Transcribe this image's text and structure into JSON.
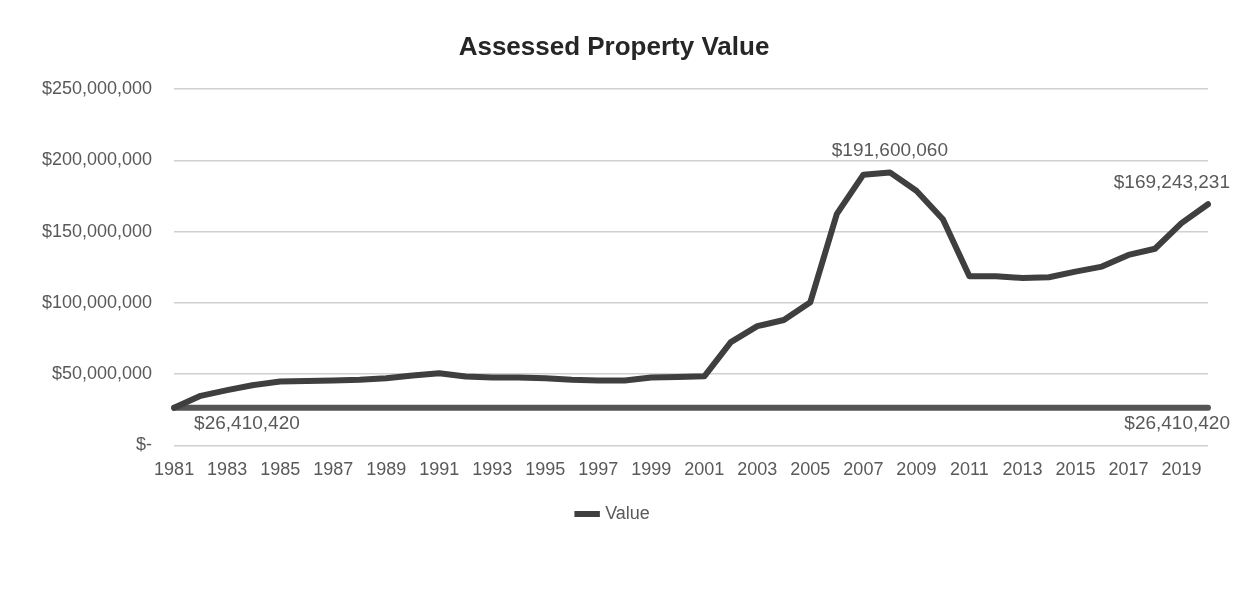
{
  "chart_data": {
    "type": "line",
    "title": "Assessed Property Value",
    "categories": [
      "1981",
      null,
      "1983",
      null,
      "1985",
      null,
      "1987",
      null,
      "1989",
      null,
      "1991",
      null,
      "1993",
      null,
      "1995",
      null,
      "1997",
      null,
      "1999",
      null,
      "2001",
      null,
      "2003",
      null,
      "2005",
      null,
      "2007",
      null,
      "2009",
      null,
      "2011",
      null,
      "2013",
      null,
      "2015",
      null,
      "2017",
      null,
      "2019",
      null
    ],
    "series": [
      {
        "name": "Value",
        "color": "#3f3f3f",
        "values": [
          26410420,
          34800000,
          38800000,
          42400000,
          44800000,
          45200000,
          45500000,
          46000000,
          47100000,
          49000000,
          50700000,
          48300000,
          47600000,
          47600000,
          47100000,
          46000000,
          45500000,
          45500000,
          47600000,
          48000000,
          48500000,
          72500000,
          83700000,
          88000000,
          100500000,
          162500000,
          190000000,
          191600060,
          178700000,
          158700000,
          118700000,
          118700000,
          117500000,
          118000000,
          122000000,
          125500000,
          133700000,
          138000000,
          156000000,
          169243231
        ],
        "value_labels": [
          "$26,410,420",
          null,
          null,
          null,
          null,
          null,
          null,
          null,
          null,
          null,
          null,
          null,
          null,
          null,
          null,
          null,
          null,
          null,
          null,
          null,
          null,
          null,
          null,
          null,
          null,
          null,
          null,
          "$191,600,060",
          null,
          null,
          null,
          null,
          null,
          null,
          null,
          null,
          null,
          null,
          null,
          "$169,243,231"
        ]
      },
      {
        "color": "#555555",
        "values": [
          26410420,
          26410420,
          26410420,
          26410420,
          26410420,
          26410420,
          26410420,
          26410420,
          26410420,
          26410420,
          26410420,
          26410420,
          26410420,
          26410420,
          26410420,
          26410420,
          26410420,
          26410420,
          26410420,
          26410420,
          26410420,
          26410420,
          26410420,
          26410420,
          26410420,
          26410420,
          26410420,
          26410420,
          26410420,
          26410420,
          26410420,
          26410420,
          26410420,
          26410420,
          26410420,
          26410420,
          26410420,
          26410420,
          26410420,
          26410420
        ],
        "value_labels": [
          null,
          null,
          null,
          null,
          null,
          null,
          null,
          null,
          null,
          null,
          null,
          null,
          null,
          null,
          null,
          null,
          null,
          null,
          null,
          null,
          null,
          null,
          null,
          null,
          null,
          null,
          null,
          null,
          null,
          null,
          null,
          null,
          null,
          null,
          null,
          null,
          null,
          null,
          null,
          "$26,410,420"
        ]
      }
    ],
    "ylim": [
      0,
      250000000
    ],
    "yticks": [
      {
        "value": 0,
        "label": "$-"
      },
      {
        "value": 50000000,
        "label": "$50,000,000"
      },
      {
        "value": 100000000,
        "label": "$100,000,000"
      },
      {
        "value": 150000000,
        "label": "$150,000,000"
      },
      {
        "value": 200000000,
        "label": "$200,000,000"
      },
      {
        "value": 250000000,
        "label": "$250,000,000"
      }
    ],
    "grid": "y",
    "legend": "bottom",
    "marker": "none",
    "line_style": "solid"
  }
}
